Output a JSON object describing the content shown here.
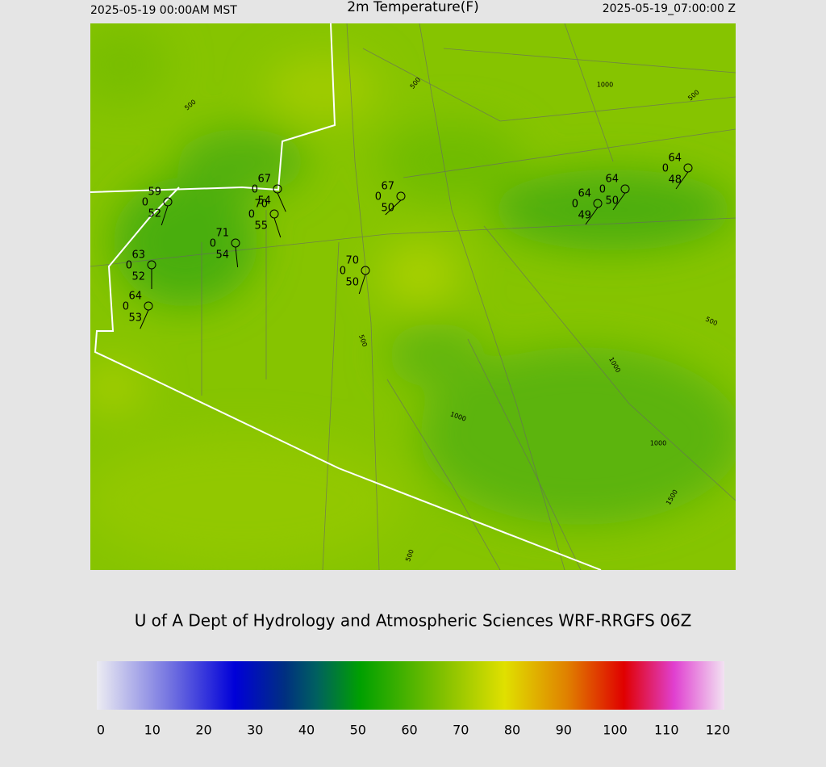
{
  "header": {
    "valid_local": "2025-05-19 00:00AM MST",
    "title": "2m Temperature(F)",
    "valid_utc": "2025-05-19_07:00:00 Z"
  },
  "footer": {
    "credit": "U of A Dept of Hydrology and Atmospheric Sciences WRF-RRGFS 06Z"
  },
  "colorbar": {
    "ticks": [
      0,
      10,
      20,
      30,
      40,
      50,
      60,
      70,
      80,
      90,
      100,
      110,
      120
    ]
  },
  "contour_labels": [
    500,
    1000,
    500,
    500,
    500,
    1000,
    1000,
    1000,
    500,
    1500,
    500
  ],
  "stations": [
    {
      "temperature": 59,
      "cloud": 0,
      "dewpoint": 52
    },
    {
      "temperature": 63,
      "cloud": 0,
      "dewpoint": 52
    },
    {
      "temperature": 64,
      "cloud": 0,
      "dewpoint": 53
    },
    {
      "temperature": 71,
      "cloud": 0,
      "dewpoint": 54
    },
    {
      "temperature": 67,
      "cloud": 0,
      "dewpoint": 54
    },
    {
      "temperature": 70,
      "cloud": 0,
      "dewpoint": 55
    },
    {
      "temperature": 70,
      "cloud": 0,
      "dewpoint": 50
    },
    {
      "temperature": 67,
      "cloud": 0,
      "dewpoint": 50
    },
    {
      "temperature": 64,
      "cloud": 0,
      "dewpoint": 49
    },
    {
      "temperature": 64,
      "cloud": 0,
      "dewpoint": 50
    },
    {
      "temperature": 64,
      "cloud": 0,
      "dewpoint": 48
    }
  ]
}
